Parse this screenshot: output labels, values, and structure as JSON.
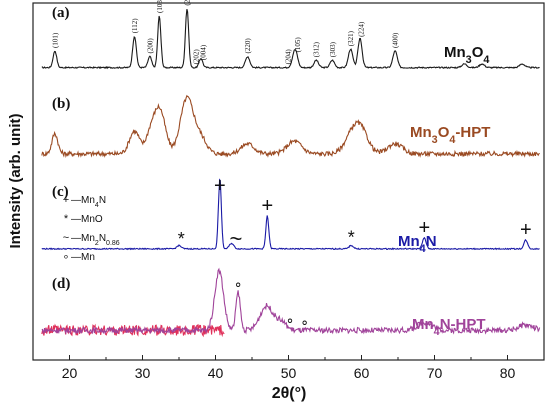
{
  "chart_data": {
    "type": "line",
    "xlabel": "2θ(°)",
    "ylabel": "Intensity (arb. unit)",
    "xlim": [
      15,
      85
    ],
    "x_ticks": [
      20,
      30,
      40,
      50,
      60,
      70,
      80
    ],
    "grid": false,
    "panels": [
      {
        "id": "a",
        "label": "(a)",
        "name": "Mn3O4",
        "name_parts": [
          "Mn",
          "3",
          "O",
          "4",
          ""
        ],
        "color": "#1a1a1a",
        "baseline": 10,
        "noise": 0.35,
        "peaks": [
          [
            18.0,
            9,
            0.25
          ],
          [
            28.9,
            17,
            0.25
          ],
          [
            31.0,
            6,
            0.25
          ],
          [
            32.3,
            28,
            0.22
          ],
          [
            36.1,
            32,
            0.22
          ],
          [
            38.0,
            5,
            0.25
          ],
          [
            44.4,
            6,
            0.3
          ],
          [
            50.7,
            4,
            0.3
          ],
          [
            51.0,
            7,
            0.3
          ],
          [
            53.8,
            4,
            0.3
          ],
          [
            56.0,
            4,
            0.3
          ],
          [
            58.5,
            10,
            0.3
          ],
          [
            59.8,
            16,
            0.28
          ],
          [
            64.6,
            9,
            0.3
          ],
          [
            74.1,
            2,
            0.35
          ],
          [
            76.5,
            2,
            0.35
          ],
          [
            82.0,
            2,
            0.35
          ]
        ],
        "annotations": [
          {
            "label": "(101)",
            "x": 18.0
          },
          {
            "label": "(112)",
            "x": 28.9
          },
          {
            "label": "(200)",
            "x": 31.0
          },
          {
            "label": "(103)",
            "x": 32.3
          },
          {
            "label": "(211)",
            "x": 36.1
          },
          {
            "label": "(202)",
            "x": 37.3
          },
          {
            "label": "(004)",
            "x": 38.3
          },
          {
            "label": "(220)",
            "x": 44.4
          },
          {
            "label": "(204)",
            "x": 49.9
          },
          {
            "label": "(105)",
            "x": 51.2
          },
          {
            "label": "(312)",
            "x": 53.8
          },
          {
            "label": "(303)",
            "x": 56.0
          },
          {
            "label": "(321)",
            "x": 58.5
          },
          {
            "label": "(224)",
            "x": 59.9
          },
          {
            "label": "(400)",
            "x": 64.6
          }
        ]
      },
      {
        "id": "b",
        "label": "(b)",
        "name": "Mn3O4-HPT",
        "name_parts": [
          "Mn",
          "3",
          "O",
          "4",
          "-HPT"
        ],
        "color": "#9a4a22",
        "baseline": 8,
        "noise": 0.9,
        "peaks": [
          [
            18.0,
            8,
            0.4
          ],
          [
            28.9,
            9,
            0.7
          ],
          [
            31.0,
            6,
            0.6
          ],
          [
            32.3,
            18,
            0.8
          ],
          [
            36.1,
            22,
            0.9
          ],
          [
            38.0,
            6,
            0.8
          ],
          [
            44.4,
            4,
            0.9
          ],
          [
            50.8,
            5,
            1.0
          ],
          [
            58.6,
            6,
            1.0
          ],
          [
            59.9,
            9,
            1.0
          ],
          [
            64.6,
            4,
            1.0
          ]
        ],
        "annotations": []
      },
      {
        "id": "c",
        "label": "(c)",
        "name": "Mn4N",
        "name_parts": [
          "Mn",
          "4",
          "N",
          "",
          ""
        ],
        "color": "#1a1aa6",
        "baseline": 6,
        "noise": 0.25,
        "peaks": [
          [
            35.0,
            1.5,
            0.3
          ],
          [
            40.6,
            32,
            0.2
          ],
          [
            42.2,
            2.5,
            0.3
          ],
          [
            47.1,
            15,
            0.2
          ],
          [
            58.6,
            1.5,
            0.3
          ],
          [
            68.6,
            5,
            0.25
          ],
          [
            82.5,
            4,
            0.25
          ]
        ],
        "markers": [
          {
            "symbol": "+",
            "x": 40.6
          },
          {
            "symbol": "+",
            "x": 47.1
          },
          {
            "symbol": "+",
            "x": 68.6
          },
          {
            "symbol": "+",
            "x": 82.5
          },
          {
            "symbol": "*",
            "x": 35.3
          },
          {
            "symbol": "*",
            "x": 58.6
          },
          {
            "symbol": "~",
            "x": 42.8
          }
        ],
        "legend": [
          {
            "symbol": "+",
            "prefix": "—Mn",
            "sub": "4",
            "suffix": "N"
          },
          {
            "symbol": "*",
            "prefix": "—MnO",
            "sub": "",
            "suffix": ""
          },
          {
            "symbol": "~",
            "prefix": "—Mn",
            "sub": "2",
            "suffix": "N",
            "sub2": "0.86"
          },
          {
            "symbol": "∘",
            "prefix": "—Mn",
            "sub": "",
            "suffix": ""
          }
        ]
      },
      {
        "id": "d",
        "label": "(d)",
        "name": "Mn4N-HPT",
        "name_parts": [
          "Mn",
          "4",
          "N",
          "",
          "-HPT"
        ],
        "color": "#a0439a",
        "baseline": 8,
        "noise": 1.0,
        "peaks": [
          [
            40.5,
            22,
            0.6
          ],
          [
            43.1,
            14,
            0.3
          ],
          [
            47.0,
            9,
            0.9
          ],
          [
            49.0,
            3,
            0.7
          ],
          [
            68.7,
            3,
            1.0
          ],
          [
            82.5,
            2,
            1.0
          ]
        ],
        "markers": [
          {
            "symbol": "∘",
            "x": 43.1
          },
          {
            "symbol": "∘",
            "x": 50.2
          },
          {
            "symbol": "∘",
            "x": 52.2
          }
        ]
      }
    ]
  }
}
